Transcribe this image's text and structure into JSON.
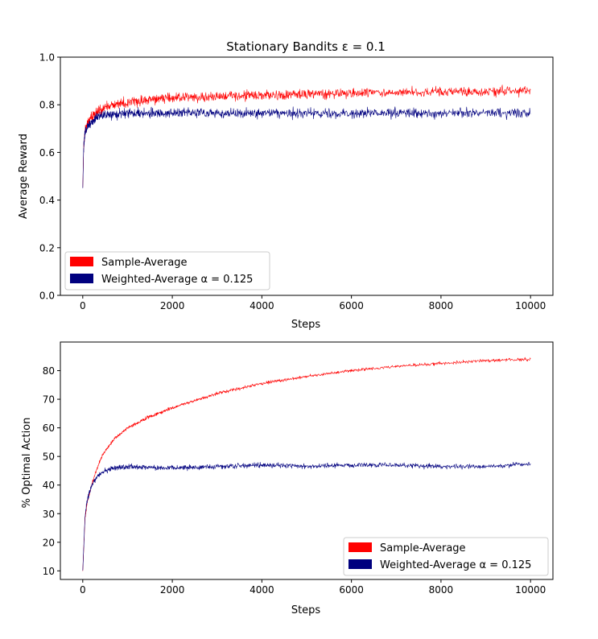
{
  "figure": {
    "background": "#ffffff"
  },
  "chart_data": [
    {
      "type": "line",
      "title": "Stationary Bandits ε = 0.1",
      "xlabel": "Steps",
      "ylabel": "Average Reward",
      "xlim": [
        -500,
        10500
      ],
      "ylim": [
        0.0,
        1.0
      ],
      "xticks": [
        0,
        2000,
        4000,
        6000,
        8000,
        10000
      ],
      "xtick_labels": [
        "0",
        "2000",
        "4000",
        "6000",
        "8000",
        "10000"
      ],
      "yticks": [
        0.0,
        0.2,
        0.4,
        0.6,
        0.8,
        1.0
      ],
      "ytick_labels": [
        "0.0",
        "0.2",
        "0.4",
        "0.6",
        "0.8",
        "1.0"
      ],
      "grid": false,
      "legend_position": "lower-left",
      "series": [
        {
          "name": "Sample-Average",
          "color": "#ff0000",
          "x": [
            0,
            20,
            50,
            100,
            200,
            300,
            500,
            700,
            1000,
            1500,
            2000,
            3000,
            4000,
            5000,
            6000,
            7000,
            8000,
            9000,
            10000
          ],
          "y": [
            0.45,
            0.62,
            0.69,
            0.72,
            0.75,
            0.77,
            0.79,
            0.8,
            0.81,
            0.82,
            0.83,
            0.835,
            0.84,
            0.845,
            0.85,
            0.85,
            0.855,
            0.855,
            0.86
          ],
          "noise": 0.03
        },
        {
          "name": "Weighted-Average α = 0.125",
          "color": "#00007f",
          "x": [
            0,
            20,
            50,
            100,
            200,
            300,
            500,
            700,
            1000,
            1500,
            2000,
            3000,
            4000,
            5000,
            6000,
            7000,
            8000,
            9000,
            10000
          ],
          "y": [
            0.45,
            0.62,
            0.68,
            0.71,
            0.73,
            0.745,
            0.755,
            0.76,
            0.765,
            0.765,
            0.765,
            0.765,
            0.765,
            0.765,
            0.765,
            0.765,
            0.765,
            0.765,
            0.765
          ],
          "noise": 0.03
        }
      ]
    },
    {
      "type": "line",
      "title": "",
      "xlabel": "Steps",
      "ylabel": "% Optimal Action",
      "xlim": [
        -500,
        10500
      ],
      "ylim": [
        7,
        90
      ],
      "xticks": [
        0,
        2000,
        4000,
        6000,
        8000,
        10000
      ],
      "xtick_labels": [
        "0",
        "2000",
        "4000",
        "6000",
        "8000",
        "10000"
      ],
      "yticks": [
        10,
        20,
        30,
        40,
        50,
        60,
        70,
        80
      ],
      "ytick_labels": [
        "10",
        "20",
        "30",
        "40",
        "50",
        "60",
        "70",
        "80"
      ],
      "grid": false,
      "legend_position": "lower-right",
      "series": [
        {
          "name": "Sample-Average",
          "color": "#ff0000",
          "x": [
            0,
            50,
            100,
            200,
            300,
            400,
            500,
            700,
            1000,
            1500,
            2000,
            3000,
            4000,
            5000,
            6000,
            7000,
            8000,
            9000,
            10000
          ],
          "y": [
            10,
            28,
            34,
            40,
            45,
            49,
            52,
            56,
            60,
            64,
            67,
            72,
            75.5,
            78,
            80,
            81.5,
            82.5,
            83.5,
            84
          ],
          "noise": 0.8
        },
        {
          "name": "Weighted-Average α = 0.125",
          "color": "#00007f",
          "x": [
            0,
            50,
            100,
            200,
            300,
            400,
            500,
            700,
            1000,
            1500,
            2000,
            3000,
            4000,
            5000,
            6000,
            7000,
            8000,
            9000,
            10000
          ],
          "y": [
            10,
            29,
            35,
            40,
            42.5,
            44,
            45,
            46,
            46.5,
            46,
            46,
            46.5,
            47,
            46.5,
            47,
            47,
            46.5,
            46.5,
            47.5
          ],
          "noise": 1.3
        }
      ]
    }
  ]
}
